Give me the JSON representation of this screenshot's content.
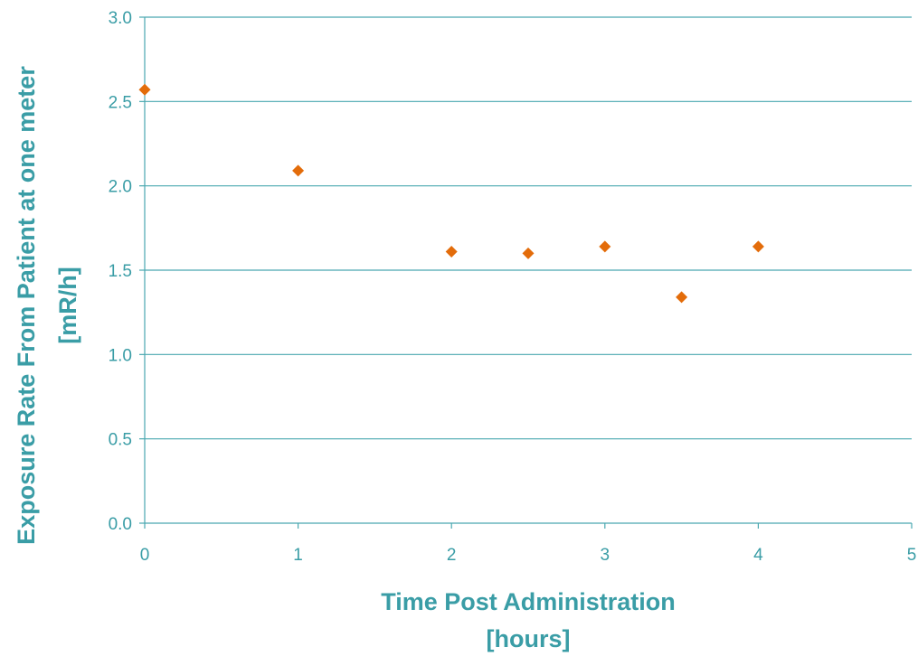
{
  "chart_data": {
    "type": "scatter",
    "title": "",
    "xlabel_lines": [
      "Time Post Administration",
      "[hours]"
    ],
    "ylabel_lines": [
      "Exposure Rate From Patient at one meter",
      "[mR/h]"
    ],
    "xlim": [
      0,
      5
    ],
    "ylim": [
      0,
      3
    ],
    "x_ticks": [
      0,
      1,
      2,
      3,
      4,
      5
    ],
    "y_ticks": [
      0,
      0.5,
      1,
      1.5,
      2,
      2.5,
      3
    ],
    "x_tick_labels": [
      "0",
      "1",
      "2",
      "3",
      "4",
      "5"
    ],
    "y_tick_labels": [
      "0.0",
      "0.5",
      "1.0",
      "1.5",
      "2.0",
      "2.5",
      "3.0"
    ],
    "grid": "horizontal",
    "legend": "none",
    "marker": "diamond",
    "series": [
      {
        "x": [
          0,
          1,
          2,
          2.5,
          3,
          3.5,
          4
        ],
        "y": [
          2.57,
          2.09,
          1.61,
          1.6,
          1.64,
          1.34,
          1.64
        ]
      }
    ]
  },
  "colors": {
    "text": "#3a9da6",
    "axis": "#4aa8b0",
    "grid": "#4aa8b0",
    "marker": "#e36c0a"
  }
}
